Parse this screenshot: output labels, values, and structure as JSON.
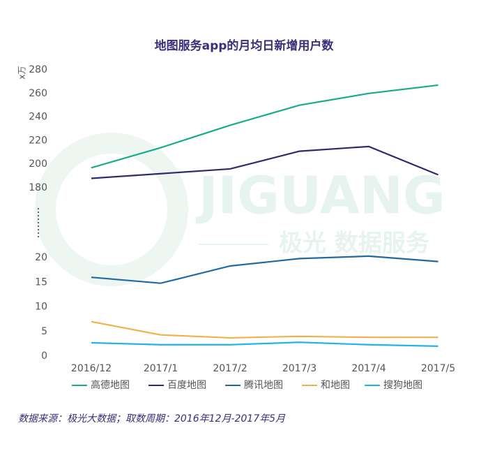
{
  "chart_data": {
    "type": "line",
    "title": "地图服务app的月均日新增用户数",
    "y_label": "x万",
    "categories": [
      "2016/12",
      "2017/1",
      "2017/2",
      "2017/3",
      "2017/4",
      "2017/5"
    ],
    "series": [
      {
        "name": "高德地图",
        "color": "#1aab8a",
        "values": [
          197,
          214,
          233,
          250,
          260,
          267
        ]
      },
      {
        "name": "百度地图",
        "color": "#2e2a6e",
        "values": [
          188,
          192,
          196,
          211,
          215,
          191
        ]
      },
      {
        "name": "腾讯地图",
        "color": "#1f6aa5",
        "values": [
          16,
          14.8,
          18.3,
          19.8,
          20.3,
          19.2
        ]
      },
      {
        "name": "和地图",
        "color": "#f0b14a",
        "values": [
          7,
          4.3,
          3.7,
          4,
          3.8,
          3.8
        ]
      },
      {
        "name": "搜狗地图",
        "color": "#1fb5e6",
        "values": [
          2.7,
          2.3,
          2.3,
          2.8,
          2.3,
          2
        ]
      }
    ],
    "ylim_upper": [
      180,
      280
    ],
    "yticks_upper": [
      180,
      200,
      220,
      240,
      260,
      280
    ],
    "ylim_lower": [
      0,
      20
    ],
    "yticks_lower": [
      0,
      5,
      10,
      15,
      20
    ],
    "watermark": [
      "JIGUANG",
      "极光 数据服务"
    ],
    "footnote": "数据来源：极光大数据；取数周期：2016年12月-2017年5月"
  }
}
